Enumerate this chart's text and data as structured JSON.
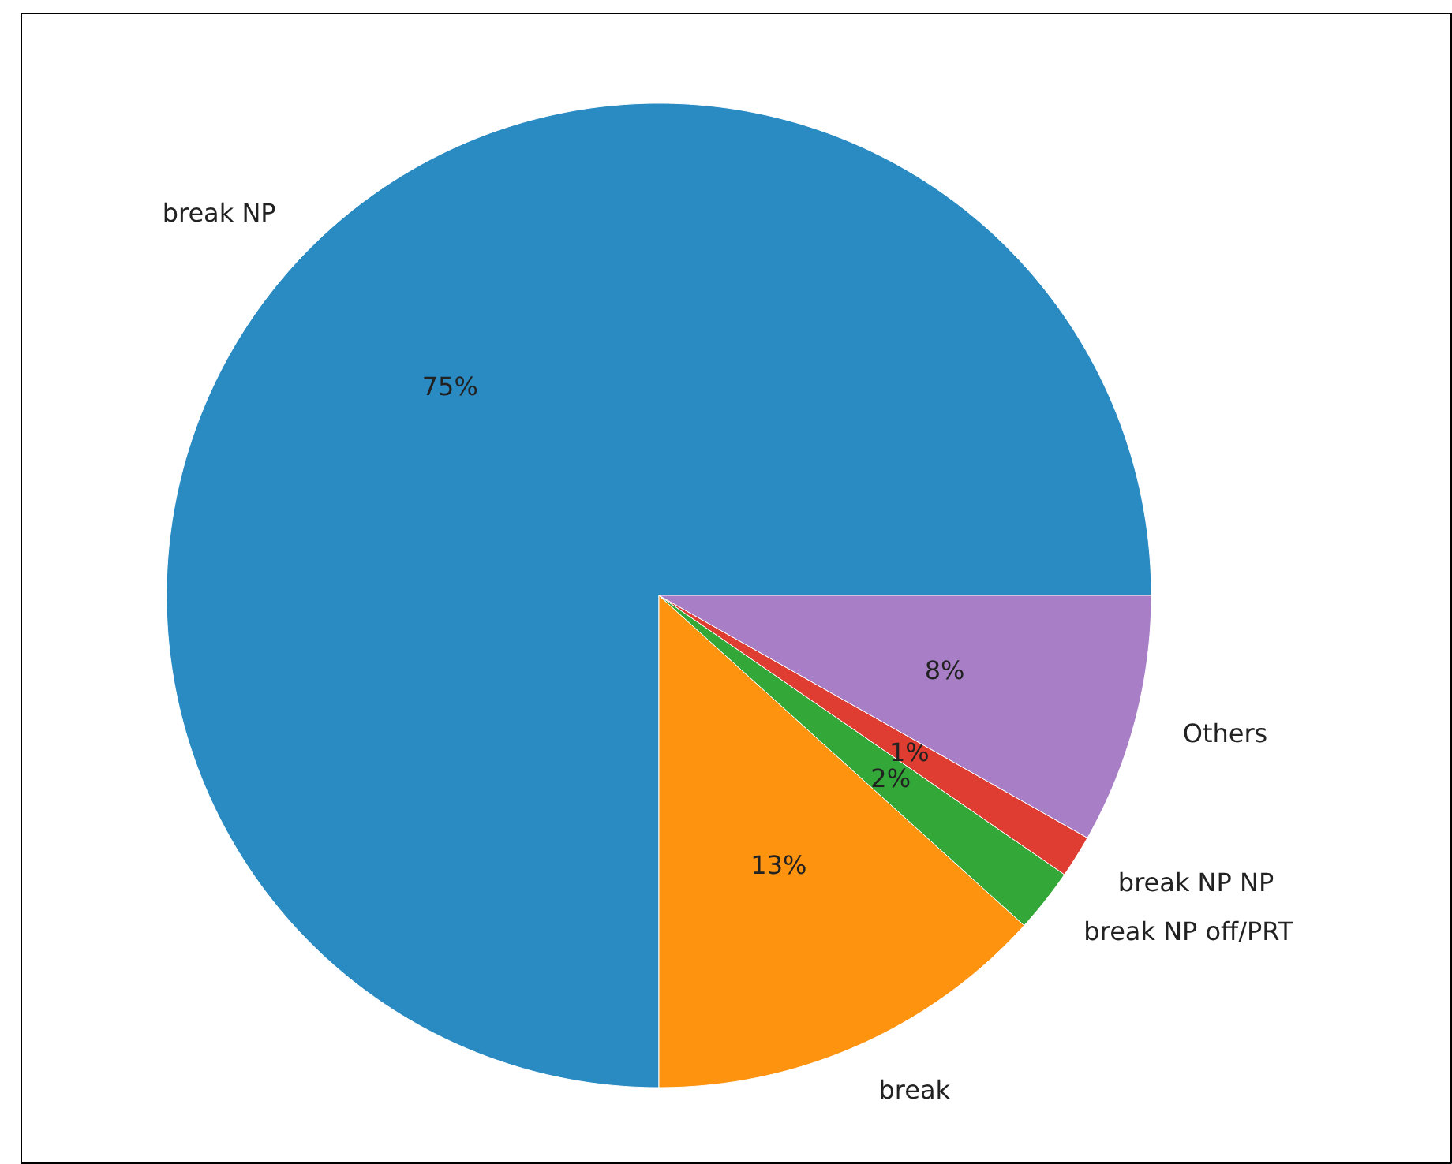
{
  "chart_data": {
    "type": "pie",
    "categories": [
      "break NP",
      "break",
      "break NP off/PRT",
      "break NP NP",
      "Others"
    ],
    "values": [
      75,
      13.3,
      2.1,
      1.4,
      8.2
    ],
    "colors": [
      "#2a8bc3",
      "#fd930f",
      "#33a838",
      "#df3d32",
      "#a87fc7"
    ],
    "value_labels": [
      "75%",
      "13%",
      "2%",
      "1%",
      "8%"
    ]
  }
}
